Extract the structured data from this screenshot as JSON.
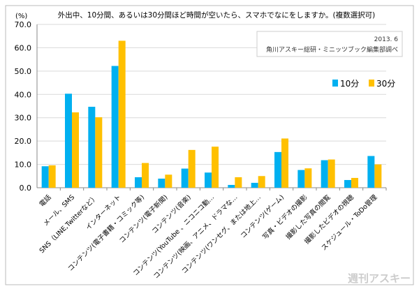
{
  "chart_data": {
    "type": "bar",
    "title": "外出中、10分間、あるいは30分間ほど時間が空いたら、スマホでなにをしますか。(複数選択可)",
    "ylabel": "(%)",
    "xlabel": "",
    "ylim": [
      0,
      70
    ],
    "yticks": [
      "0.0",
      "10.0",
      "20.0",
      "30.0",
      "40.0",
      "50.0",
      "60.0",
      "70.0"
    ],
    "grid": true,
    "legend_position": "right",
    "source_note": [
      "2013. 6",
      "角川アスキー総研・ミニッツブック編集部調べ"
    ],
    "watermark": "週刊アスキー",
    "categories": [
      "電話",
      "メール、SMS",
      "SNS（LINE,Twitterなど）",
      "インターネット",
      "コンテンツ(電子書籍・コミック等)",
      "コンテンツ(電子新聞)",
      "コンテンツ(音楽)",
      "コンテンツ(YouTube 、ニコニコ動…",
      "コンテンツ(映画、アニメ、ドラマな…",
      "コンテンツ(ワンセグ、または地上…",
      "コンテンツ(ゲーム)",
      "写真・ビデオの撮影",
      "撮影した写真の閲覧",
      "撮影したビデオの視聴",
      "スケジュール・ToDo管理"
    ],
    "series": [
      {
        "name": "10分",
        "color": "#00b0f0",
        "values": [
          9.2,
          40.3,
          34.7,
          52.2,
          4.5,
          3.9,
          8.2,
          6.5,
          1.2,
          2.1,
          15.3,
          7.6,
          11.8,
          3.3,
          13.6
        ]
      },
      {
        "name": "30分",
        "color": "#ffc000",
        "values": [
          9.6,
          32.3,
          30.2,
          63.0,
          10.6,
          5.6,
          16.2,
          17.6,
          4.5,
          5.0,
          21.1,
          8.3,
          12.1,
          4.2,
          10.0
        ]
      }
    ]
  }
}
